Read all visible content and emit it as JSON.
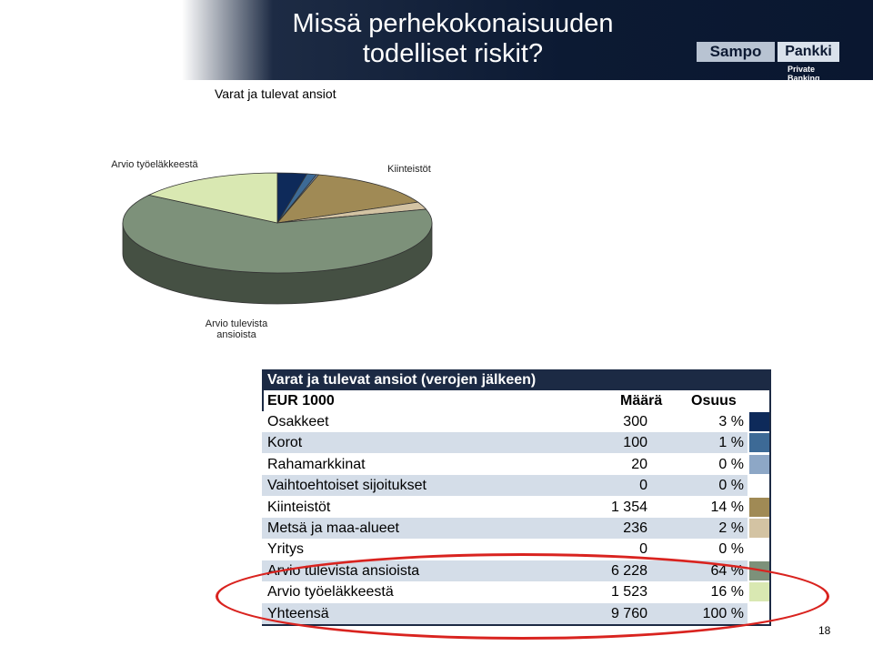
{
  "header": {
    "title": "Missä perhekokonaisuuden todelliset riskit?",
    "logo_left": "Sampo",
    "logo_right": "Pankki",
    "logo_sub": "Private Banking"
  },
  "subtitle": "Varat ja tulevat ansiot",
  "pie_labels": {
    "top_left": "Arvio työeläkkeestä",
    "top_right": "Kiinteistöt",
    "bottom": "Arvio tulevista ansioista"
  },
  "table": {
    "title": "Varat ja tulevat ansiot (verojen jälkeen)",
    "col_name": "EUR 1000",
    "col_amount": "Määrä",
    "col_share": "Osuus",
    "rows": [
      {
        "name": "Osakkeet",
        "amount": "300",
        "share": "3 %",
        "color": "#0e2a5a",
        "bg": "#ffffff"
      },
      {
        "name": "Korot",
        "amount": "100",
        "share": "1 %",
        "color": "#3d6a96",
        "bg": "#d4dde8"
      },
      {
        "name": "Rahamarkkinat",
        "amount": "20",
        "share": "0 %",
        "color": "#8da7c6",
        "bg": "#ffffff"
      },
      {
        "name": "Vaihtoehtoiset sijoitukset",
        "amount": "0",
        "share": "0 %",
        "color": "#ffffff",
        "bg": "#d4dde8"
      },
      {
        "name": "Kiinteistöt",
        "amount": "1 354",
        "share": "14 %",
        "color": "#a08a55",
        "bg": "#ffffff"
      },
      {
        "name": "Metsä ja maa-alueet",
        "amount": "236",
        "share": "2 %",
        "color": "#d3c3a3",
        "bg": "#d4dde8"
      },
      {
        "name": "Yritys",
        "amount": "0",
        "share": "0 %",
        "color": "#ffffff",
        "bg": "#ffffff"
      },
      {
        "name": "Arvio tulevista ansioista",
        "amount": "6 228",
        "share": "64 %",
        "color": "#7d917a",
        "bg": "#d4dde8"
      },
      {
        "name": "Arvio työeläkkeestä",
        "amount": "1 523",
        "share": "16 %",
        "color": "#d9e8b2",
        "bg": "#ffffff"
      },
      {
        "name": "Yhteensä",
        "amount": "9 760",
        "share": "100 %",
        "color": "#ffffff",
        "bg": "#d4dde8"
      }
    ]
  },
  "chart_data": {
    "type": "pie",
    "categories": [
      "Osakkeet",
      "Korot",
      "Rahamarkkinat",
      "Vaihtoehtoiset sijoitukset",
      "Kiinteistöt",
      "Metsä ja maa-alueet",
      "Yritys",
      "Arvio tulevista ansioista",
      "Arvio työeläkkeestä"
    ],
    "values": [
      300,
      100,
      20,
      0,
      1354,
      236,
      0,
      6228,
      1523
    ],
    "colors": [
      "#0e2a5a",
      "#3d6a96",
      "#8da7c6",
      "#ffffff",
      "#a08a55",
      "#d3c3a3",
      "#ffffff",
      "#7d917a",
      "#d9e8b2"
    ],
    "style": "3d"
  },
  "page_number": "18"
}
